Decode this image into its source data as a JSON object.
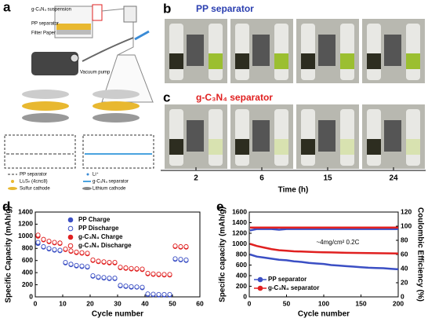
{
  "schematic": {
    "letter": "a",
    "labels": [
      "g-C₃N₄ suspension",
      "PP separator",
      "Filter Paper",
      "Vacuum pump"
    ],
    "legend": [
      "PP separator",
      "Li⁺",
      "Li₂Sₙ (4≤n≤8)",
      "g-C₃N₄ separator",
      "Sulfur cathode",
      "Lithium cathode"
    ]
  },
  "photos": {
    "top_letter": "b",
    "top_title": "PP separator",
    "bottom_letter": "c",
    "bottom_title": "g-C₃N₄ separator",
    "times": [
      "2",
      "6",
      "15",
      "24"
    ],
    "time_label": "Time (h)"
  },
  "chart_data": [
    {
      "type": "scatter",
      "panel": "d",
      "x_label": "Cycle number",
      "y_label": "Specific Capacity (mAh/g)",
      "x": [
        1,
        3,
        5,
        7,
        9,
        11,
        13,
        15,
        17,
        19,
        21,
        23,
        25,
        27,
        29,
        31,
        33,
        35,
        37,
        39,
        41,
        43,
        45,
        47,
        49,
        51,
        53,
        55
      ],
      "series": [
        {
          "name": "PP Charge",
          "color": "#3b4fc4",
          "marker": "filled",
          "values": [
            880,
            820,
            790,
            770,
            760,
            560,
            530,
            510,
            500,
            490,
            340,
            320,
            310,
            300,
            300,
            180,
            170,
            160,
            160,
            150,
            40,
            35,
            30,
            30,
            30,
            620,
            610,
            600
          ]
        },
        {
          "name": "PP Discharge",
          "color": "#3b4fc4",
          "marker": "open",
          "values": [
            900,
            830,
            800,
            780,
            770,
            570,
            540,
            520,
            510,
            500,
            350,
            330,
            320,
            310,
            310,
            190,
            180,
            170,
            165,
            160,
            50,
            45,
            40,
            40,
            40,
            630,
            620,
            610
          ]
        },
        {
          "name": "g-C₃N₄ Charge",
          "color": "#e02020",
          "marker": "filled",
          "values": [
            1000,
            940,
            910,
            890,
            880,
            780,
            750,
            730,
            720,
            710,
            600,
            580,
            570,
            560,
            560,
            480,
            470,
            460,
            455,
            450,
            380,
            370,
            365,
            360,
            360,
            830,
            820,
            820
          ]
        },
        {
          "name": "g-C₃N₄ Discharge",
          "color": "#e02020",
          "marker": "open",
          "values": [
            1020,
            950,
            920,
            900,
            890,
            790,
            760,
            740,
            730,
            720,
            610,
            590,
            580,
            570,
            570,
            490,
            480,
            470,
            465,
            460,
            390,
            380,
            375,
            370,
            370,
            840,
            830,
            830
          ]
        }
      ],
      "xlim": [
        0,
        60
      ],
      "xticks": [
        0,
        10,
        20,
        30,
        40,
        50,
        60
      ],
      "ylim": [
        0,
        1400
      ],
      "yticks": [
        0,
        200,
        400,
        600,
        800,
        1000,
        1200,
        1400
      ]
    },
    {
      "type": "line",
      "panel": "e",
      "x_label": "Cycle number",
      "y_label": "Specific capacity (mAh/g)",
      "y2_label": "Coulombic Efficiency (%)",
      "annotation": "~4mg/cm²   0.2C",
      "x": [
        1,
        10,
        20,
        30,
        40,
        50,
        60,
        70,
        80,
        90,
        100,
        110,
        120,
        130,
        140,
        150,
        160,
        170,
        180,
        190,
        200
      ],
      "series": [
        {
          "name": "PP separator",
          "color": "#3b4fc4",
          "values": [
            800,
            760,
            740,
            720,
            700,
            690,
            670,
            660,
            640,
            630,
            620,
            600,
            590,
            580,
            570,
            560,
            550,
            545,
            540,
            530,
            520
          ]
        },
        {
          "name": "g-C₃N₄ separator",
          "color": "#e02020",
          "values": [
            1000,
            960,
            930,
            900,
            880,
            870,
            860,
            855,
            850,
            845,
            840,
            838,
            835,
            832,
            830,
            828,
            826,
            824,
            822,
            820,
            818
          ]
        },
        {
          "color": "#3b4fc4",
          "axis": "y2",
          "values": [
            94,
            96,
            96,
            96,
            95,
            96,
            96,
            96,
            96,
            96,
            96,
            96,
            96,
            96,
            96,
            96,
            96,
            96,
            96,
            96,
            96
          ]
        },
        {
          "color": "#e02020",
          "axis": "y2",
          "values": [
            98,
            98,
            98,
            98,
            98,
            98,
            98,
            98,
            98,
            98,
            98,
            98,
            98,
            98,
            98,
            98,
            98,
            98,
            98,
            98,
            98
          ]
        }
      ],
      "xlim": [
        0,
        200
      ],
      "xticks": [
        0,
        50,
        100,
        150,
        200
      ],
      "ylim": [
        0,
        1600
      ],
      "yticks": [
        0,
        200,
        400,
        600,
        800,
        1000,
        1200,
        1400,
        1600
      ],
      "y2lim": [
        0,
        120
      ],
      "y2ticks": [
        0,
        20,
        40,
        60,
        80,
        100,
        120
      ]
    }
  ]
}
